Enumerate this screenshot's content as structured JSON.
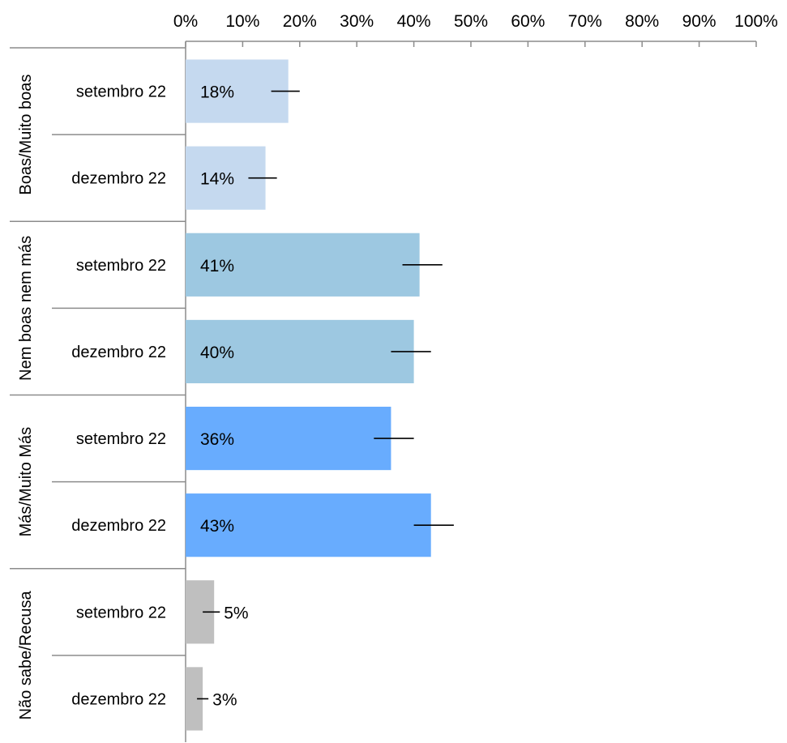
{
  "chart_data": {
    "type": "bar",
    "orientation": "horizontal",
    "x_axis": {
      "position": "top",
      "min": 0,
      "max": 100,
      "ticks": [
        "0%",
        "10%",
        "20%",
        "30%",
        "40%",
        "50%",
        "60%",
        "70%",
        "80%",
        "90%",
        "100%"
      ]
    },
    "groups": [
      {
        "label": "Boas/Muito boas",
        "color": "#c5d9ef",
        "bars": [
          {
            "category": "setembro 22",
            "value": 18,
            "value_label": "18%",
            "error_low": 15,
            "error_high": 20
          },
          {
            "category": "dezembro 22",
            "value": 14,
            "value_label": "14%",
            "error_low": 11,
            "error_high": 16
          }
        ]
      },
      {
        "label": "Nem boas nem más",
        "color": "#9dc8e1",
        "bars": [
          {
            "category": "setembro 22",
            "value": 41,
            "value_label": "41%",
            "error_low": 38,
            "error_high": 45
          },
          {
            "category": "dezembro 22",
            "value": 40,
            "value_label": "40%",
            "error_low": 36,
            "error_high": 43
          }
        ]
      },
      {
        "label": "Más/Muito Más",
        "color": "#68acfe",
        "bars": [
          {
            "category": "setembro 22",
            "value": 36,
            "value_label": "36%",
            "error_low": 33,
            "error_high": 40
          },
          {
            "category": "dezembro 22",
            "value": 43,
            "value_label": "43%",
            "error_low": 40,
            "error_high": 47
          }
        ]
      },
      {
        "label": "Não sabe/Recusa",
        "color": "#bfbfbf",
        "bars": [
          {
            "category": "setembro 22",
            "value": 5,
            "value_label": "5%",
            "error_low": 3,
            "error_high": 6
          },
          {
            "category": "dezembro 22",
            "value": 3,
            "value_label": "3%",
            "error_low": 2,
            "error_high": 4
          }
        ]
      }
    ],
    "grid": false,
    "legend": "none"
  }
}
